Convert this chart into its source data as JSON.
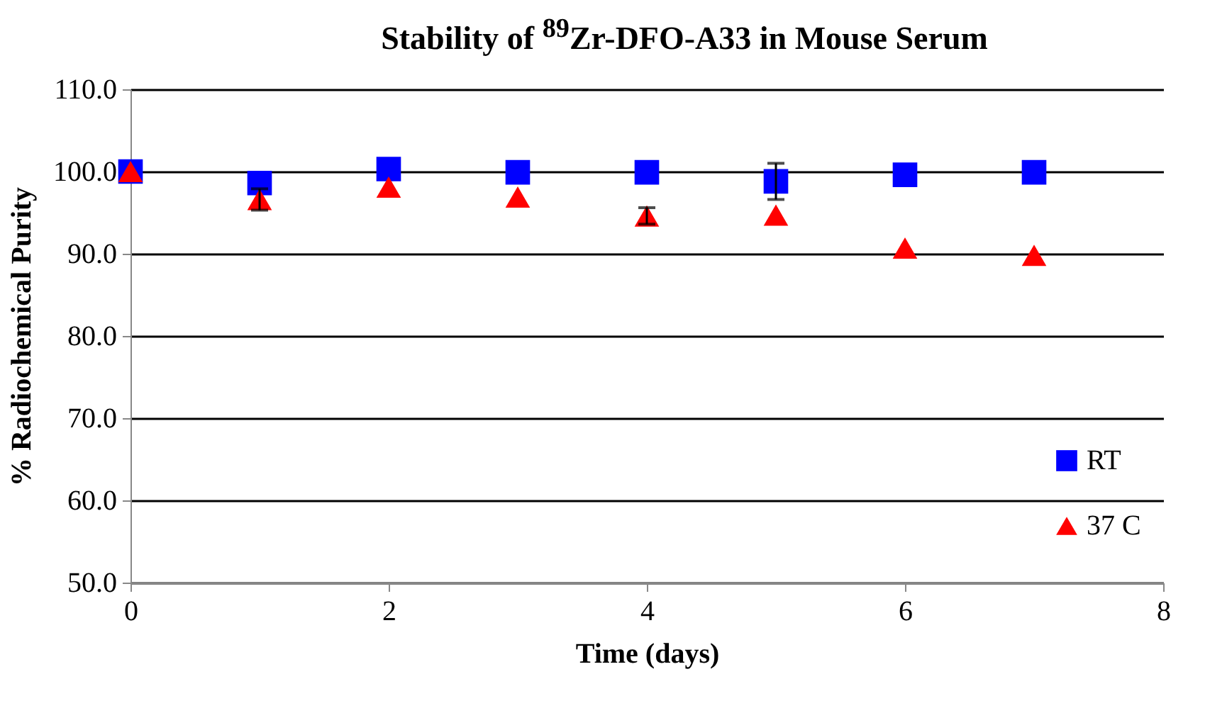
{
  "chart_data": {
    "type": "scatter",
    "title": "Stability of $^{89}$Zr-DFO-A33 in Mouse Serum",
    "xlabel": "Time (days)",
    "ylabel": "% Radiochemical Purity",
    "x": [
      0,
      1,
      2,
      3,
      4,
      5,
      6,
      7
    ],
    "series": [
      {
        "name": "RT",
        "color": "#0000ff",
        "marker": "square",
        "values": [
          100.0,
          98.6,
          100.3,
          99.9,
          99.9,
          98.8,
          99.6,
          99.9
        ],
        "errors": [
          null,
          null,
          null,
          null,
          null,
          2.2,
          null,
          null
        ]
      },
      {
        "name": "37 C",
        "color": "#ff0000",
        "marker": "triangle",
        "values": [
          100.0,
          96.6,
          98.1,
          96.9,
          94.6,
          94.7,
          90.7,
          89.8
        ],
        "errors": [
          null,
          1.3,
          null,
          null,
          1.0,
          null,
          null,
          null
        ]
      }
    ],
    "xlim": [
      0,
      8
    ],
    "xticks": [
      0,
      2,
      4,
      6,
      8
    ],
    "ylim": [
      50,
      110
    ],
    "yticks": [
      {
        "value": 50,
        "label": "50.0"
      },
      {
        "value": 60,
        "label": "60.0"
      },
      {
        "value": 70,
        "label": "70.0"
      },
      {
        "value": 80,
        "label": "80.0"
      },
      {
        "value": 90,
        "label": "90.0"
      },
      {
        "value": 100,
        "label": "100.0"
      },
      {
        "value": 110,
        "label": "110.0"
      }
    ],
    "grid": "y",
    "legend": "bottom right"
  }
}
